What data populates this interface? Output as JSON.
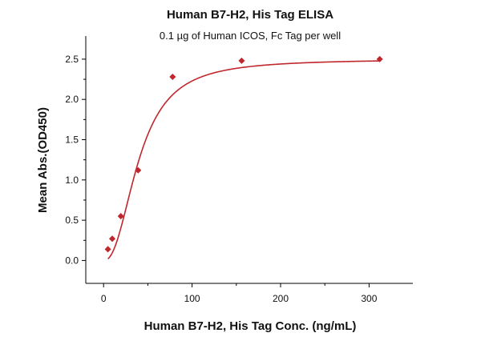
{
  "chart_data": {
    "type": "scatter",
    "title": "Human B7-H2, His Tag ELISA",
    "subtitle": "0.1 µg of Human ICOS, Fc Tag per well",
    "xlabel": "Human B7-H2, His Tag Conc. (ng/mL)",
    "ylabel": "Mean Abs.(OD450)",
    "xlim": [
      -20,
      350
    ],
    "ylim": [
      -0.2,
      2.8
    ],
    "xticks": [
      0,
      100,
      200,
      300
    ],
    "yticks": [
      0.0,
      0.5,
      1.0,
      1.5,
      2.0,
      2.5
    ],
    "xtick_labels": [
      "0",
      "100",
      "200",
      "300"
    ],
    "ytick_labels": [
      "0.0",
      "0.5",
      "1.0",
      "1.5",
      "2.0",
      "2.5"
    ],
    "grid": false,
    "series": [
      {
        "type": "scatter",
        "marker": "diamond",
        "x": [
          4.9,
          9.8,
          19.5,
          39,
          78,
          156,
          312
        ],
        "y": [
          0.14,
          0.27,
          0.55,
          1.12,
          2.28,
          2.48,
          2.5
        ]
      },
      {
        "type": "line",
        "fit": "four-parameter logistic",
        "params": {
          "bottom": 0,
          "top": 2.5,
          "ec50": 40,
          "hill": 2.3
        },
        "x_range": [
          4.9,
          312
        ]
      }
    ],
    "colors": {
      "series": "#c0272d",
      "axis": "#000000",
      "text": "#111111"
    }
  }
}
